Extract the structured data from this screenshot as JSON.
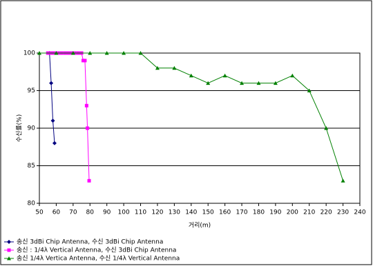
{
  "chart_data": {
    "type": "line",
    "x_label": "거리(m)",
    "y_label": "수신률(%)",
    "xlim": [
      50,
      240
    ],
    "xticks": [
      50,
      60,
      70,
      80,
      90,
      100,
      110,
      120,
      130,
      140,
      150,
      160,
      170,
      180,
      190,
      200,
      210,
      220,
      230,
      240
    ],
    "ylim": [
      80,
      100
    ],
    "yticks": [
      80,
      85,
      90,
      95,
      100
    ],
    "grid": true,
    "series": [
      {
        "name": "송신 3dBi Chip Antenna, 수신 3dBi Chip Antenna",
        "color": "#000080",
        "marker": "diamond",
        "x": [
          56,
          57,
          58,
          59
        ],
        "values": [
          100,
          96,
          91,
          88
        ]
      },
      {
        "name": "송신 : 1/4λ Vertical Antenna, 수신 3dBi Chip Antenna",
        "color": "#ff00ff",
        "marker": "square",
        "x": [
          55,
          57,
          59,
          61,
          63,
          65,
          67,
          69,
          71,
          73,
          75,
          76,
          77,
          78,
          78.5,
          79.5
        ],
        "values": [
          100,
          100,
          100,
          100,
          100,
          100,
          100,
          100,
          100,
          100,
          100,
          99,
          99,
          93,
          90,
          83
        ]
      },
      {
        "name": "송신 1/4λ Vertica Antenna, 수신 1/4λ Vertical Antenna",
        "color": "#008000",
        "marker": "triangle",
        "x": [
          50,
          60,
          70,
          80,
          90,
          100,
          110,
          120,
          130,
          140,
          150,
          160,
          170,
          180,
          190,
          200,
          210,
          220,
          230
        ],
        "values": [
          100,
          100,
          100,
          100,
          100,
          100,
          100,
          98,
          98,
          97,
          96,
          97,
          96,
          96,
          96,
          97,
          95,
          90,
          83
        ]
      }
    ]
  }
}
